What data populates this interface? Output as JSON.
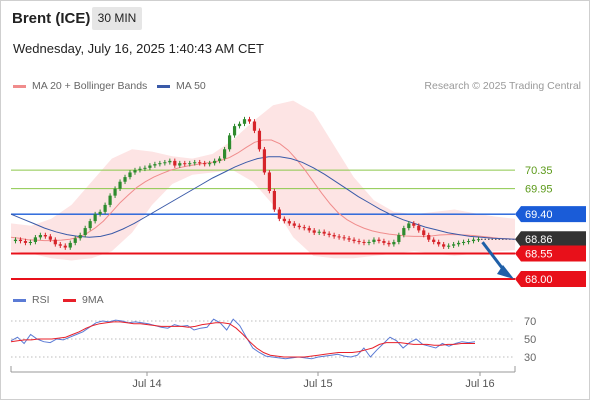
{
  "header": {
    "instrument": "Brent (ICE)",
    "timeframe": "30 MIN",
    "timestamp": "Wednesday, July 16, 2025 1:40:43 AM CET"
  },
  "legend": {
    "ma20": "MA 20 + Bollinger Bands",
    "ma50": "MA 50",
    "ma20_color": "#f08c8c",
    "ma50_color": "#3a5aa8"
  },
  "credit": "Research © 2025 Trading Central",
  "rsi_legend": {
    "rsi": "RSI",
    "ma9": "9MA",
    "rsi_color": "#5b7bd5",
    "ma9_color": "#e8202a"
  },
  "chart_data": [
    {
      "type": "line",
      "title": "Brent (ICE) 30 MIN",
      "x_tick_labels": [
        "Jul 14",
        "Jul 15",
        "Jul 16"
      ],
      "price_levels": [
        {
          "value": 70.35,
          "label": "70.35",
          "style": "green-line",
          "color": "#8cc84b"
        },
        {
          "value": 69.95,
          "label": "69.95",
          "style": "green-line",
          "color": "#8cc84b"
        },
        {
          "value": 69.4,
          "label": "69.40",
          "style": "blue-line",
          "color": "#1a5cd8"
        },
        {
          "value": 68.86,
          "label": "68.86",
          "style": "last-price",
          "color": "#333333"
        },
        {
          "value": 68.55,
          "label": "68.55",
          "style": "red-line",
          "color": "#e8101a"
        },
        {
          "value": 68.0,
          "label": "68.00",
          "style": "red-line",
          "color": "#e8101a"
        }
      ],
      "ylim": [
        67.85,
        71.95
      ],
      "closes": [
        68.85,
        68.82,
        68.78,
        68.8,
        68.9,
        68.95,
        68.92,
        68.85,
        68.75,
        68.72,
        68.68,
        68.78,
        68.88,
        68.95,
        69.1,
        69.25,
        69.4,
        69.45,
        69.6,
        69.8,
        69.95,
        70.1,
        70.2,
        70.3,
        70.35,
        70.38,
        70.4,
        70.45,
        70.48,
        70.5,
        70.52,
        70.55,
        70.45,
        70.5,
        70.48,
        70.5,
        70.52,
        70.5,
        70.48,
        70.5,
        70.55,
        70.6,
        70.8,
        71.1,
        71.3,
        71.35,
        71.45,
        71.4,
        71.2,
        70.8,
        70.3,
        69.9,
        69.5,
        69.3,
        69.25,
        69.2,
        69.15,
        69.12,
        69.1,
        69.05,
        69.0,
        69.02,
        68.98,
        68.95,
        68.92,
        68.9,
        68.88,
        68.85,
        68.82,
        68.8,
        68.78,
        68.8,
        68.85,
        68.82,
        68.78,
        68.75,
        68.8,
        68.95,
        69.1,
        69.2,
        69.15,
        69.05,
        68.95,
        68.85,
        68.8,
        68.75,
        68.7,
        68.72,
        68.75,
        68.78,
        68.8,
        68.82,
        68.85,
        68.86
      ],
      "series": [
        {
          "name": "MA 20 + Bollinger Bands",
          "values": [
            68.9,
            68.88,
            68.85,
            68.84,
            68.83,
            68.83,
            68.84,
            68.86,
            68.9,
            68.98,
            69.1,
            69.25,
            69.45,
            69.65,
            69.82,
            69.98,
            70.1,
            70.2,
            70.28,
            70.35,
            70.4,
            70.44,
            70.47,
            70.5,
            70.52,
            70.56,
            70.62,
            70.72,
            70.84,
            70.95,
            71.0,
            71.0,
            70.92,
            70.78,
            70.58,
            70.35,
            70.1,
            69.85,
            69.62,
            69.42,
            69.28,
            69.18,
            69.1,
            69.04,
            69.0,
            68.97,
            68.95,
            68.93,
            68.92,
            68.92,
            68.93,
            68.95,
            68.96,
            68.96,
            68.95,
            68.94,
            68.92,
            68.9,
            68.88,
            68.87,
            68.86
          ]
        },
        {
          "name": "MA 50",
          "values": [
            69.4,
            69.3,
            69.2,
            69.1,
            69.02,
            68.96,
            68.92,
            68.9,
            68.92,
            68.98,
            69.08,
            69.2,
            69.34,
            69.48,
            69.62,
            69.76,
            69.9,
            70.04,
            70.18,
            70.3,
            70.42,
            70.52,
            70.6,
            70.64,
            70.64,
            70.6,
            70.52,
            70.4,
            70.26,
            70.1,
            69.94,
            69.78,
            69.64,
            69.5,
            69.38,
            69.28,
            69.2,
            69.12,
            69.06,
            69.0,
            68.96,
            68.92,
            68.9,
            68.88,
            68.87,
            68.86
          ]
        }
      ],
      "bollinger": {
        "upper": [
          69.2,
          69.15,
          69.3,
          69.6,
          70.1,
          70.6,
          70.8,
          70.75,
          70.65,
          70.6,
          70.7,
          71.0,
          71.4,
          71.75,
          71.85,
          71.6,
          70.9,
          70.2,
          69.7,
          69.45,
          69.4,
          69.45,
          69.5,
          69.42,
          69.35,
          69.3
        ],
        "lower": [
          68.6,
          68.55,
          68.45,
          68.4,
          68.45,
          68.6,
          69.0,
          69.6,
          70.05,
          70.25,
          70.3,
          70.35,
          70.1,
          69.6,
          68.9,
          68.5,
          68.45,
          68.45,
          68.5,
          68.55,
          68.6,
          68.55,
          68.5,
          68.55,
          68.6,
          68.62
        ]
      },
      "forecast_arrow": {
        "from": 68.86,
        "to": 68.0,
        "color": "#1f5fa8"
      }
    },
    {
      "type": "line",
      "title": "RSI",
      "y_tick_labels": [
        "70",
        "50",
        "30"
      ],
      "ylim": [
        20,
        80
      ],
      "series": [
        {
          "name": "RSI",
          "values": [
            48,
            52,
            45,
            55,
            50,
            47,
            46,
            50,
            49,
            52,
            55,
            58,
            63,
            68,
            70,
            69,
            71,
            70,
            68,
            69,
            68,
            67,
            65,
            63,
            62,
            66,
            64,
            65,
            60,
            62,
            63,
            72,
            68,
            60,
            72,
            65,
            52,
            40,
            35,
            31,
            30,
            29,
            28,
            29,
            30,
            29,
            28,
            30,
            31,
            32,
            33,
            31,
            30,
            32,
            40,
            30,
            38,
            45,
            52,
            48,
            40,
            46,
            50,
            44,
            42,
            40,
            45,
            42,
            45,
            47,
            46,
            47
          ]
        },
        {
          "name": "9MA",
          "values": [
            47,
            48,
            49,
            49,
            50,
            50,
            50,
            51,
            52,
            55,
            58,
            62,
            65,
            67,
            68,
            69,
            69,
            68,
            67,
            67,
            66,
            65,
            64,
            64,
            64,
            64,
            63,
            64,
            66,
            67,
            68,
            68,
            67,
            62,
            55,
            47,
            40,
            35,
            32,
            31,
            30,
            30,
            30,
            30,
            31,
            32,
            33,
            34,
            35,
            35,
            35,
            36,
            38,
            40,
            44,
            46,
            46,
            46,
            45,
            44,
            44,
            44,
            43,
            43,
            44,
            44,
            45,
            45,
            45
          ]
        }
      ]
    }
  ]
}
